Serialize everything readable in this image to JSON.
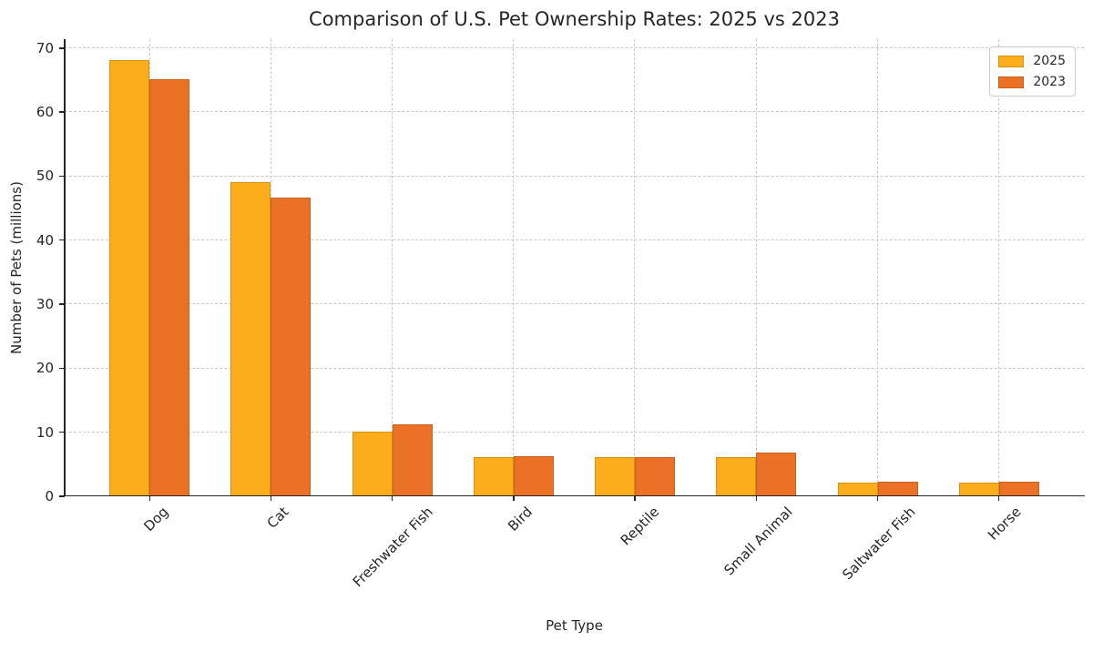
{
  "chart_data": {
    "type": "bar",
    "title": "Comparison of U.S. Pet Ownership Rates: 2025 vs 2023",
    "xlabel": "Pet Type",
    "ylabel": "Number of Pets (millions)",
    "categories": [
      "Dog",
      "Cat",
      "Freshwater Fish",
      "Bird",
      "Reptile",
      "Small Animal",
      "Saltwater Fish",
      "Horse"
    ],
    "series": [
      {
        "name": "2025",
        "color": "#FBAD1B",
        "values": [
          68,
          49,
          10,
          6,
          6,
          6,
          2,
          2
        ]
      },
      {
        "name": "2023",
        "color": "#EA7125",
        "values": [
          65,
          46.5,
          11.1,
          6.1,
          6.0,
          6.7,
          2.2,
          2.2
        ]
      }
    ],
    "ylim": [
      0,
      71.4
    ],
    "yticks": [
      0,
      10,
      20,
      30,
      40,
      50,
      60,
      70
    ],
    "grid": true,
    "grid_style": "dashed",
    "legend_position": "upper right",
    "colors": {
      "background": "#ffffff",
      "text": "#262626",
      "grid": "#c9c9c9",
      "spine": "#262626"
    }
  }
}
